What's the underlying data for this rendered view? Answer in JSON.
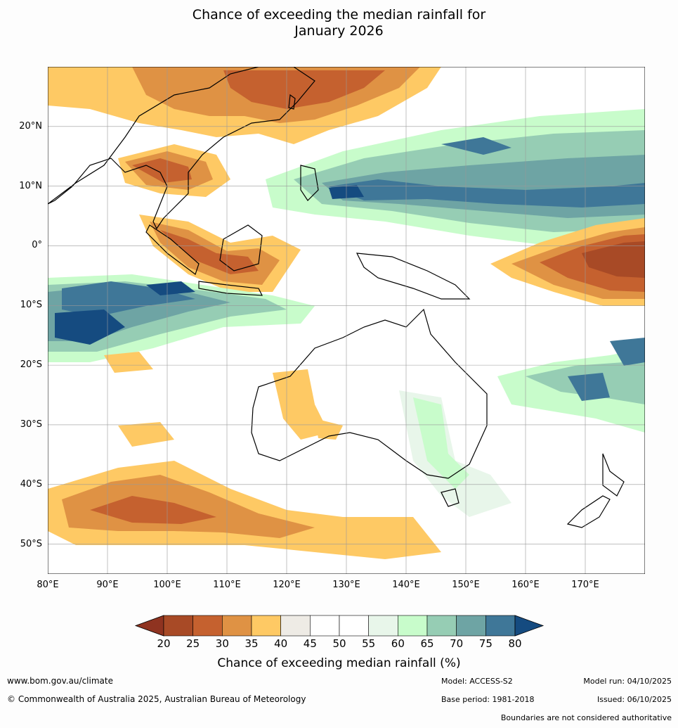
{
  "title_line1": "Chance of exceeding the median rainfall for",
  "title_line2": "January 2026",
  "map": {
    "extent": {
      "lon_min": 80,
      "lon_max": 180,
      "lat_min": -55,
      "lat_max": 30
    },
    "lat_ticks": [
      {
        "value": 20,
        "label": "20°N"
      },
      {
        "value": 10,
        "label": "10°N"
      },
      {
        "value": 0,
        "label": "0°"
      },
      {
        "value": -10,
        "label": "10°S"
      },
      {
        "value": -20,
        "label": "20°S"
      },
      {
        "value": -30,
        "label": "30°S"
      },
      {
        "value": -40,
        "label": "40°S"
      },
      {
        "value": -50,
        "label": "50°S"
      }
    ],
    "lon_ticks": [
      {
        "value": 80,
        "label": "80°E"
      },
      {
        "value": 90,
        "label": "90°E"
      },
      {
        "value": 100,
        "label": "100°E"
      },
      {
        "value": 110,
        "label": "110°E"
      },
      {
        "value": 120,
        "label": "120°E"
      },
      {
        "value": 130,
        "label": "130°E"
      },
      {
        "value": 140,
        "label": "140°E"
      },
      {
        "value": 150,
        "label": "150°E"
      },
      {
        "value": 160,
        "label": "160°E"
      },
      {
        "value": 170,
        "label": "170°E"
      }
    ]
  },
  "colorbar": {
    "ticks": [
      "20",
      "25",
      "30",
      "35",
      "40",
      "45",
      "50",
      "55",
      "60",
      "65",
      "70",
      "75",
      "80"
    ],
    "colors": [
      "#a84a26",
      "#c5612f",
      "#df9244",
      "#fec964",
      "#eeebe5",
      "#ffffff",
      "#ffffff",
      "#e8f6ea",
      "#c8fccb",
      "#96cdb4",
      "#6ea4a4",
      "#3f7798"
    ],
    "under_color": "#8f3320",
    "over_color": "#154b80",
    "label": "Chance of exceeding median rainfall (%)"
  },
  "footer": {
    "website": "www.bom.gov.au/climate",
    "copyright": "© Commonwealth of Australia 2025, Australian Bureau of Meteorology",
    "model": "Model: ACCESS-S2",
    "base_period": "Base period: 1981-2018",
    "model_run": "Model run: 04/10/2025",
    "issued": "Issued: 06/10/2025",
    "disclaimer": "Boundaries are not considered authoritative"
  }
}
